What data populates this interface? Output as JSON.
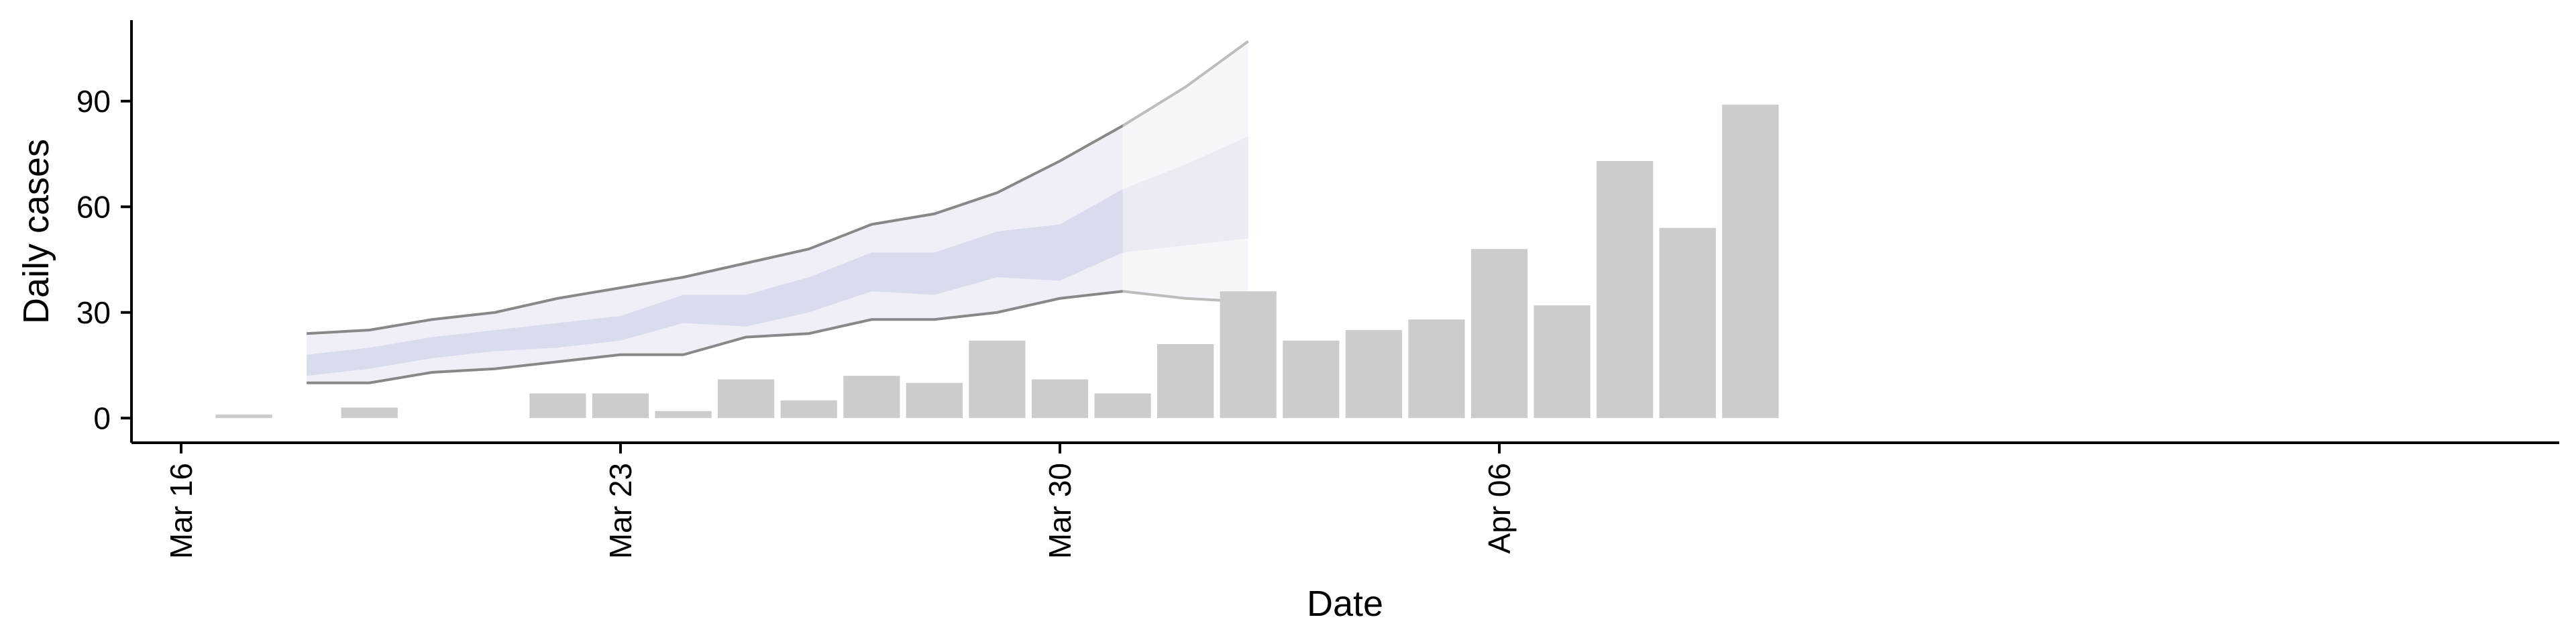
{
  "chart_data": {
    "type": "bar",
    "xlabel": "Date",
    "ylabel": "Daily cases",
    "ylim": [
      -7,
      113
    ],
    "yticks": [
      0,
      30,
      60,
      90
    ],
    "xticks": [
      {
        "date": "2020-03-16",
        "label": "Mar 16"
      },
      {
        "date": "2020-03-23",
        "label": "Mar 23"
      },
      {
        "date": "2020-03-30",
        "label": "Mar 30"
      },
      {
        "date": "2020-04-06",
        "label": "Apr 06"
      }
    ],
    "xlim": [
      "2020-03-16",
      "2020-04-12"
    ],
    "grid": false,
    "bars": {
      "color": "#cccccc",
      "dates": [
        "2020-03-17",
        "2020-03-18",
        "2020-03-19",
        "2020-03-20",
        "2020-03-21",
        "2020-03-22",
        "2020-03-23",
        "2020-03-24",
        "2020-03-25",
        "2020-03-26",
        "2020-03-27",
        "2020-03-28",
        "2020-03-29",
        "2020-03-30",
        "2020-03-31",
        "2020-04-01",
        "2020-04-02",
        "2020-04-03",
        "2020-04-04",
        "2020-04-05",
        "2020-04-06",
        "2020-04-07",
        "2020-04-08",
        "2020-04-09",
        "2020-04-10",
        "2020-04-11"
      ],
      "values": [
        1,
        0,
        3,
        0,
        0,
        7,
        7,
        2,
        11,
        5,
        12,
        10,
        22,
        11,
        7,
        21,
        36,
        22,
        25,
        28,
        48,
        32,
        73,
        54,
        89,
        0
      ]
    },
    "forecast": {
      "dates": [
        "2020-03-18",
        "2020-03-19",
        "2020-03-20",
        "2020-03-21",
        "2020-03-22",
        "2020-03-23",
        "2020-03-24",
        "2020-03-25",
        "2020-03-26",
        "2020-03-27",
        "2020-03-28",
        "2020-03-29",
        "2020-03-30",
        "2020-03-31",
        "2020-04-01",
        "2020-04-02"
      ],
      "outer_upper": [
        24,
        25,
        28,
        30,
        34,
        37,
        40,
        44,
        48,
        55,
        58,
        64,
        73,
        83,
        94,
        107
      ],
      "inner_upper": [
        18,
        20,
        23,
        25,
        27,
        29,
        35,
        35,
        40,
        47,
        47,
        53,
        55,
        65,
        72,
        80
      ],
      "inner_lower": [
        12,
        14,
        17,
        19,
        20,
        22,
        27,
        26,
        30,
        36,
        35,
        40,
        39,
        47,
        49,
        51
      ],
      "outer_lower": [
        10,
        10,
        13,
        14,
        16,
        18,
        18,
        23,
        24,
        28,
        28,
        30,
        34,
        36,
        34,
        33
      ],
      "outer_color": "#e6e8f2",
      "inner_color": "#ccd1e6",
      "line_color": "#888888"
    }
  }
}
